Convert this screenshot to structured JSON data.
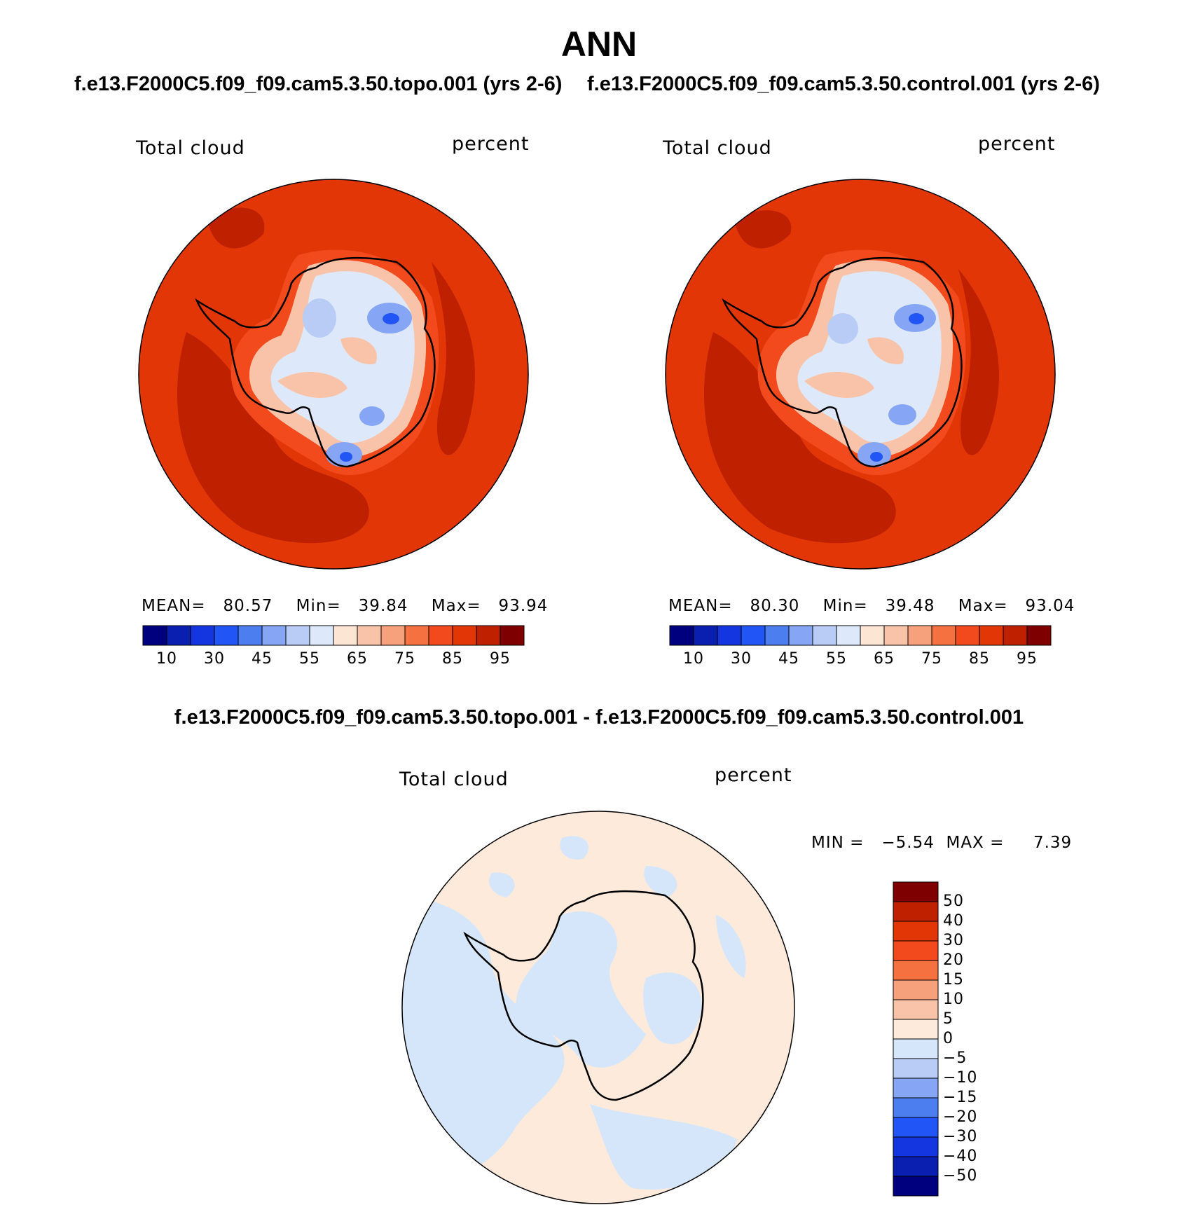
{
  "title": "ANN",
  "panels": [
    {
      "case_title": "f.e13.F2000C5.f09_f09.cam5.3.50.topo.001 (yrs 2-6)",
      "variable": "Total cloud",
      "units": "percent",
      "stats": {
        "mean_label": "MEAN=",
        "mean": "80.57",
        "min_label": "Min=",
        "min": "39.84",
        "max_label": "Max=",
        "max": "93.94"
      },
      "colorbar_ticks": [
        "10",
        "30",
        "45",
        "55",
        "65",
        "75",
        "85",
        "95"
      ]
    },
    {
      "case_title": "f.e13.F2000C5.f09_f09.cam5.3.50.control.001 (yrs 2-6)",
      "variable": "Total cloud",
      "units": "percent",
      "stats": {
        "mean_label": "MEAN=",
        "mean": "80.30",
        "min_label": "Min=",
        "min": "39.48",
        "max_label": "Max=",
        "max": "93.04"
      },
      "colorbar_ticks": [
        "10",
        "30",
        "45",
        "55",
        "65",
        "75",
        "85",
        "95"
      ]
    }
  ],
  "difference": {
    "title": "f.e13.F2000C5.f09_f09.cam5.3.50.topo.001 - f.e13.F2000C5.f09_f09.cam5.3.50.control.001",
    "variable": "Total cloud",
    "units": "percent",
    "min_label": "MIN =",
    "min": "−5.54",
    "max_label": "MAX =",
    "max": "7.39",
    "colorbar_ticks": [
      "50",
      "40",
      "30",
      "20",
      "15",
      "10",
      "5",
      "0",
      "−5",
      "−10",
      "−15",
      "−20",
      "−30",
      "−40",
      "−50"
    ]
  },
  "colors": {
    "abs_scale": [
      "#00007f",
      "#0a1fb0",
      "#1336e0",
      "#2255f5",
      "#4d7ef0",
      "#86a6f5",
      "#b8ccf5",
      "#dde9fa",
      "#fde5d3",
      "#f9c3a9",
      "#f7a07c",
      "#f5713f",
      "#f24a1c",
      "#e23606",
      "#bf2000",
      "#7f0000"
    ],
    "diff_scale": [
      "#7f0000",
      "#bf2000",
      "#e23606",
      "#f24a1c",
      "#f5713f",
      "#f7a07c",
      "#f9c3a9",
      "#fdeadb",
      "#d5e6fa",
      "#b8ccf5",
      "#86a6f5",
      "#4d7ef0",
      "#2255f5",
      "#1336e0",
      "#0a1fb0",
      "#00007f"
    ],
    "ocean_base": "#e23606",
    "ocean_dark": "#bf2000",
    "ocean_mid": "#f24a1c",
    "diff_warm": "#fdeadb",
    "diff_cool": "#d5e6fa"
  }
}
